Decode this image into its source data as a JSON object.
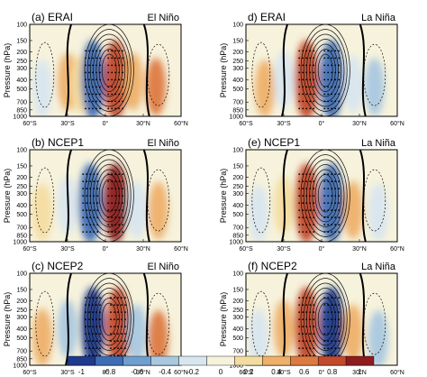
{
  "chart_data": {
    "type": "heatmap",
    "shared": {
      "ylabel": "Pressure (hPa)",
      "x_ticks": [
        "60°S",
        "30°S",
        "0°",
        "30°N",
        "60°N"
      ],
      "x_tick_values": [
        -60,
        -30,
        0,
        30,
        60
      ],
      "y_ticks": [
        "100",
        "150",
        "200",
        "250",
        "300",
        "400",
        "500",
        "700",
        "850",
        "1000"
      ],
      "y_tick_values": [
        100,
        150,
        200,
        250,
        300,
        400,
        500,
        700,
        850,
        1000
      ],
      "xlim": [
        -60,
        60
      ],
      "ylim": [
        1000,
        100
      ],
      "colorbar": {
        "ticks": [
          "-1",
          "-0.8",
          "-0.6",
          "-0.4",
          "-0.2",
          "0",
          "0.2",
          "0.4",
          "0.6",
          "0.8",
          "1"
        ],
        "values": [
          -1,
          -0.8,
          -0.6,
          -0.4,
          -0.2,
          0,
          0.2,
          0.4,
          0.6,
          0.8,
          1
        ],
        "colors": [
          "#1f3a8c",
          "#3e6db4",
          "#6f9fce",
          "#a9c8e0",
          "#d8e6ef",
          "#f6f2dc",
          "#f4dca0",
          "#eeb06a",
          "#dd7a42",
          "#c24a2c",
          "#8e1c1e"
        ]
      }
    },
    "panels": [
      {
        "id": "a",
        "label": "(a) ERAI",
        "phase": "El Niño",
        "features": [
          {
            "lat": -50,
            "p": 500,
            "v": -0.3
          },
          {
            "lat": -30,
            "p": 420,
            "v": 0.3
          },
          {
            "lat": -20,
            "p": 450,
            "v": 0.25
          },
          {
            "lat": -10,
            "p": 400,
            "v": -0.85
          },
          {
            "lat": 8,
            "p": 400,
            "v": 0.7
          },
          {
            "lat": 22,
            "p": 420,
            "v": 0.3
          },
          {
            "lat": 40,
            "p": 480,
            "v": 0.5
          }
        ]
      },
      {
        "id": "b",
        "label": "(b) NCEP1",
        "phase": "El Niño",
        "features": [
          {
            "lat": -50,
            "p": 480,
            "v": 0.2
          },
          {
            "lat": -30,
            "p": 400,
            "v": -0.25
          },
          {
            "lat": -12,
            "p": 380,
            "v": -0.8
          },
          {
            "lat": 8,
            "p": 380,
            "v": 0.9
          },
          {
            "lat": 25,
            "p": 450,
            "v": -0.3
          },
          {
            "lat": 42,
            "p": 460,
            "v": 0.35
          }
        ]
      },
      {
        "id": "c",
        "label": "(c) NCEP2",
        "phase": "El Niño",
        "features": [
          {
            "lat": -50,
            "p": 500,
            "v": 0.3
          },
          {
            "lat": -30,
            "p": 400,
            "v": -0.35
          },
          {
            "lat": -10,
            "p": 380,
            "v": -0.9
          },
          {
            "lat": 10,
            "p": 380,
            "v": 0.85
          },
          {
            "lat": 25,
            "p": 450,
            "v": -0.4
          },
          {
            "lat": 42,
            "p": 520,
            "v": 0.55
          }
        ]
      },
      {
        "id": "d",
        "label": "d) ERAI",
        "phase": "La Niña",
        "features": [
          {
            "lat": -45,
            "p": 500,
            "v": 0.3
          },
          {
            "lat": -30,
            "p": 400,
            "v": -0.3
          },
          {
            "lat": -12,
            "p": 400,
            "v": 0.8
          },
          {
            "lat": 8,
            "p": 400,
            "v": -0.8
          },
          {
            "lat": 25,
            "p": 450,
            "v": -0.25
          },
          {
            "lat": 42,
            "p": 480,
            "v": -0.45
          }
        ]
      },
      {
        "id": "e",
        "label": "(e) NCEP1",
        "phase": "La Niña",
        "features": [
          {
            "lat": -50,
            "p": 500,
            "v": -0.2
          },
          {
            "lat": -30,
            "p": 400,
            "v": 0.25
          },
          {
            "lat": -12,
            "p": 380,
            "v": 0.75
          },
          {
            "lat": 8,
            "p": 380,
            "v": -0.85
          },
          {
            "lat": 25,
            "p": 450,
            "v": 0.35
          },
          {
            "lat": 45,
            "p": 480,
            "v": -0.3
          }
        ]
      },
      {
        "id": "f",
        "label": "(f) NCEP2",
        "phase": "La Niña",
        "features": [
          {
            "lat": -50,
            "p": 500,
            "v": -0.25
          },
          {
            "lat": -30,
            "p": 400,
            "v": 0.3
          },
          {
            "lat": -12,
            "p": 380,
            "v": 0.85
          },
          {
            "lat": 8,
            "p": 380,
            "v": -0.9
          },
          {
            "lat": 25,
            "p": 450,
            "v": 0.4
          },
          {
            "lat": 45,
            "p": 520,
            "v": -0.45
          }
        ]
      }
    ]
  }
}
